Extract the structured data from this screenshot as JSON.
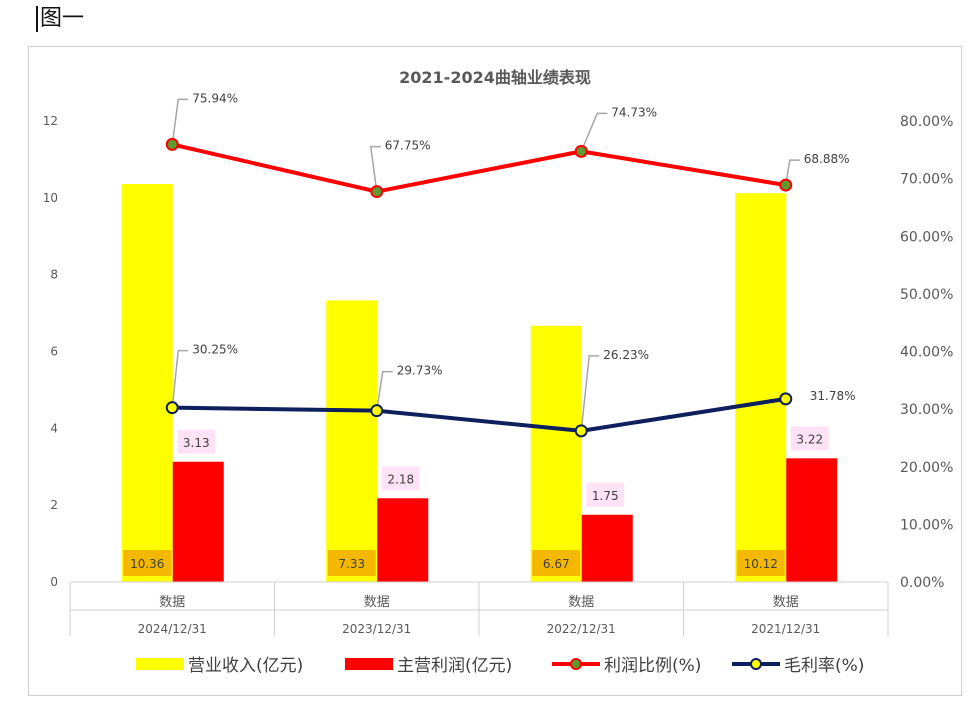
{
  "figure_label": "图一",
  "chart_data": {
    "type": "bar",
    "title": "2021-2024曲轴业绩表现",
    "categories": [
      "2024/12/31",
      "2023/12/31",
      "2022/12/31",
      "2021/12/31"
    ],
    "category_group_label": "数据",
    "ylim": [
      0,
      12
    ],
    "yticks": [
      "0",
      "2",
      "4",
      "6",
      "8",
      "10",
      "12"
    ],
    "y2lim": [
      0,
      80
    ],
    "y2ticks": [
      "0.00%",
      "10.00%",
      "20.00%",
      "30.00%",
      "40.00%",
      "50.00%",
      "60.00%",
      "70.00%",
      "80.00%"
    ],
    "series": [
      {
        "name": "营业收入(亿元)",
        "kind": "bar",
        "color": "#FFFF00",
        "values": [
          10.36,
          7.33,
          6.67,
          10.12
        ],
        "labels": [
          "10.36",
          "7.33",
          "6.67",
          "10.12"
        ]
      },
      {
        "name": "主营利润(亿元)",
        "kind": "bar",
        "color": "#FF0000",
        "values": [
          3.13,
          2.18,
          1.75,
          3.22
        ],
        "labels": [
          "3.13",
          "2.18",
          "1.75",
          "3.22"
        ]
      },
      {
        "name": "利润比例(%)",
        "kind": "line",
        "axis": "right",
        "color": "#FF0000",
        "marker": "#5B9B2F",
        "values": [
          75.94,
          67.75,
          74.73,
          68.88
        ],
        "labels": [
          "75.94%",
          "67.75%",
          "74.73%",
          "68.88%"
        ]
      },
      {
        "name": "毛利率(%)",
        "kind": "line",
        "axis": "right",
        "color": "#0D1F5C",
        "marker": "#FFFF00",
        "values": [
          30.25,
          29.73,
          26.23,
          31.78
        ],
        "labels": [
          "30.25%",
          "29.73%",
          "26.23%",
          "31.78%"
        ]
      }
    ],
    "legend_position": "bottom"
  }
}
